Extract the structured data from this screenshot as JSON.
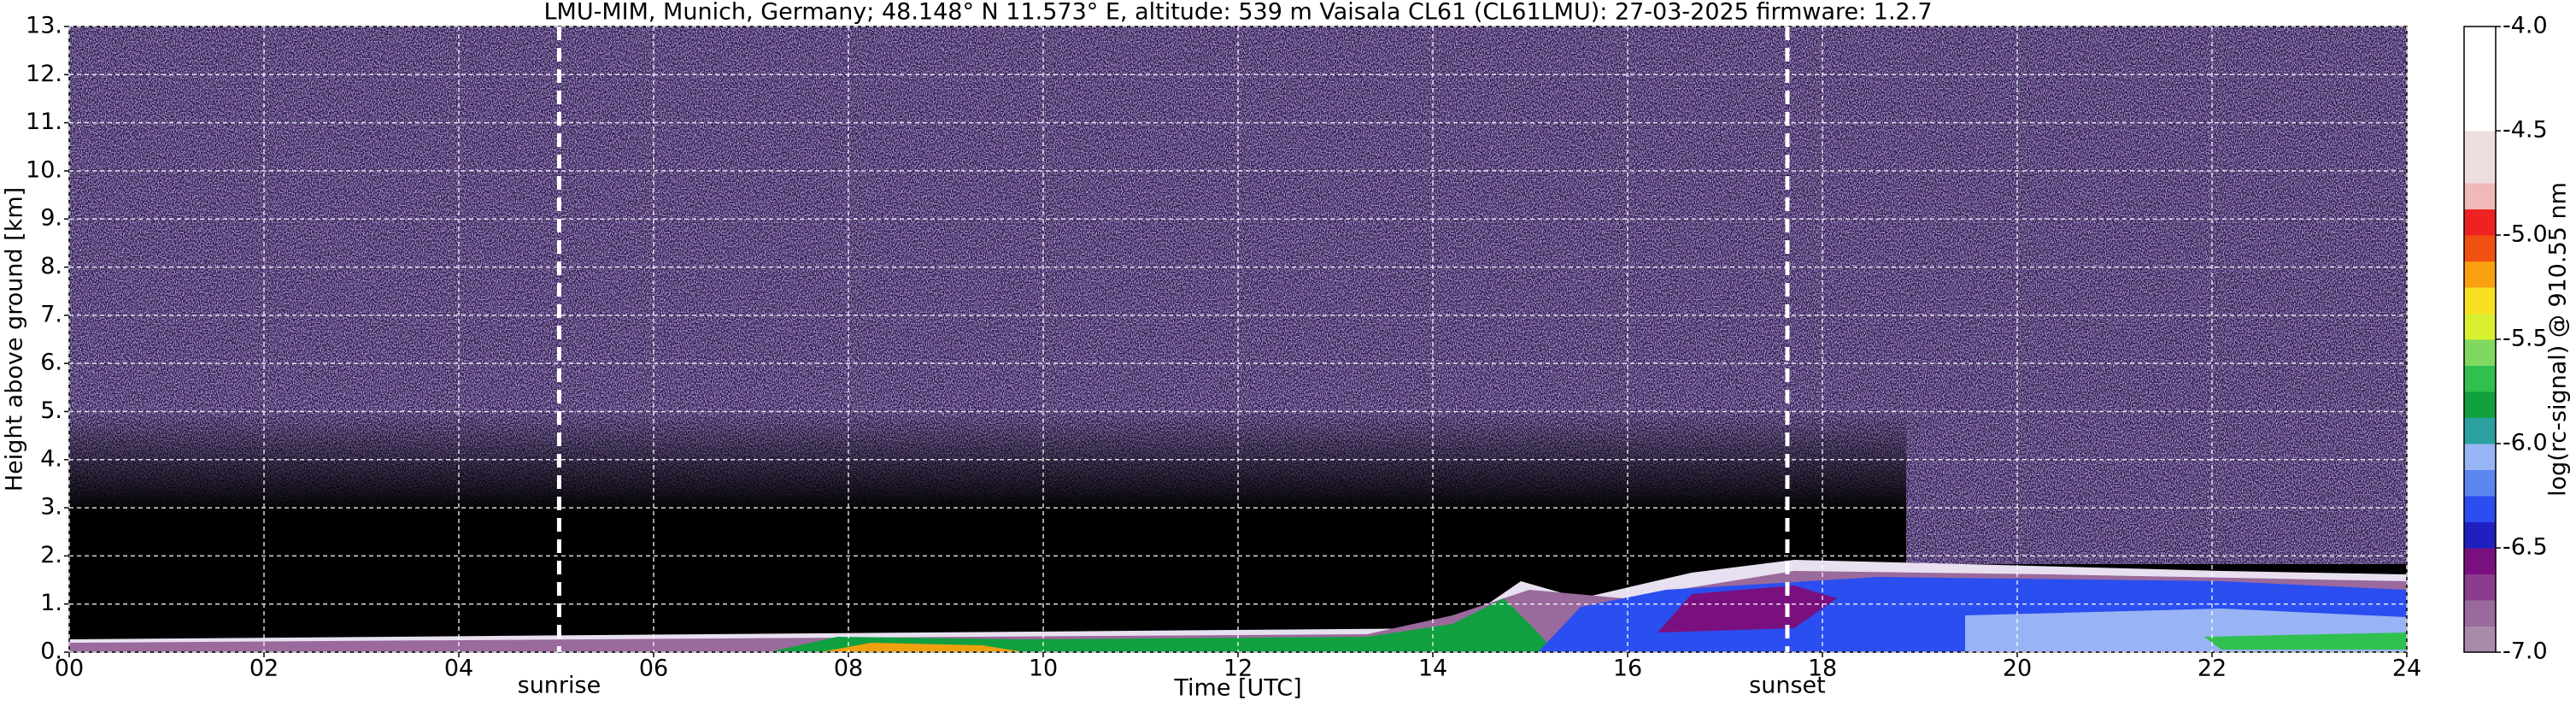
{
  "chart_data": {
    "type": "heatmap",
    "title": "LMU-MIM, Munich, Germany; 48.148° N 11.573° E, altitude: 539 m    Vaisala CL61 (CL61LMU): 27-03-2025    firmware: 1.2.7",
    "x_label": "Time [UTC]",
    "y_label": "Height above ground [km]",
    "colorbar_label": "log(rc-signal) @ 910.55 nm",
    "xlim": [
      0,
      24
    ],
    "xticks": [
      {
        "value": 0,
        "label": "00"
      },
      {
        "value": 2,
        "label": "02"
      },
      {
        "value": 4,
        "label": "04"
      },
      {
        "value": 6,
        "label": "06"
      },
      {
        "value": 8,
        "label": "08"
      },
      {
        "value": 10,
        "label": "10"
      },
      {
        "value": 12,
        "label": "12"
      },
      {
        "value": 14,
        "label": "14"
      },
      {
        "value": 16,
        "label": "16"
      },
      {
        "value": 18,
        "label": "18"
      },
      {
        "value": 20,
        "label": "20"
      },
      {
        "value": 22,
        "label": "22"
      },
      {
        "value": 24,
        "label": "24"
      }
    ],
    "ylim": [
      0,
      13
    ],
    "yticks": [
      {
        "value": 0,
        "label": "0."
      },
      {
        "value": 1,
        "label": "1."
      },
      {
        "value": 2,
        "label": "2."
      },
      {
        "value": 3,
        "label": "3."
      },
      {
        "value": 4,
        "label": "4."
      },
      {
        "value": 5,
        "label": "5."
      },
      {
        "value": 6,
        "label": "6."
      },
      {
        "value": 7,
        "label": "7."
      },
      {
        "value": 8,
        "label": "8."
      },
      {
        "value": 9,
        "label": "9."
      },
      {
        "value": 10,
        "label": "10."
      },
      {
        "value": 11,
        "label": "11."
      },
      {
        "value": 12,
        "label": "12."
      },
      {
        "value": 13,
        "label": "13."
      }
    ],
    "grid": true,
    "clim": [
      -7,
      -4
    ],
    "cticks": [
      {
        "value": -4,
        "label": "-4.0"
      },
      {
        "value": -4.5,
        "label": "-4.5"
      },
      {
        "value": -5,
        "label": "-5.0"
      },
      {
        "value": -5.5,
        "label": "-5.5"
      },
      {
        "value": -6,
        "label": "-6.0"
      },
      {
        "value": -6.5,
        "label": "-6.5"
      },
      {
        "value": -7,
        "label": "-7.0"
      }
    ],
    "colormap": [
      "#a88ba8",
      "#9a6a9c",
      "#8a3c8e",
      "#7a1080",
      "#2020c0",
      "#2a4ef0",
      "#5a86f0",
      "#98b4f4",
      "#2aa0a0",
      "#10a040",
      "#30c050",
      "#80d860",
      "#d8f030",
      "#f8e020",
      "#f8a010",
      "#f05010",
      "#ee2222",
      "#f0b8b8",
      "#eedddd",
      "#eedddd",
      "#ffffff",
      "#ffffff",
      "#ffffff",
      "#ffffff"
    ],
    "annotations": [
      {
        "text": "sunrise",
        "x": 5.03
      },
      {
        "text": "sunset",
        "x": 17.64
      }
    ]
  }
}
